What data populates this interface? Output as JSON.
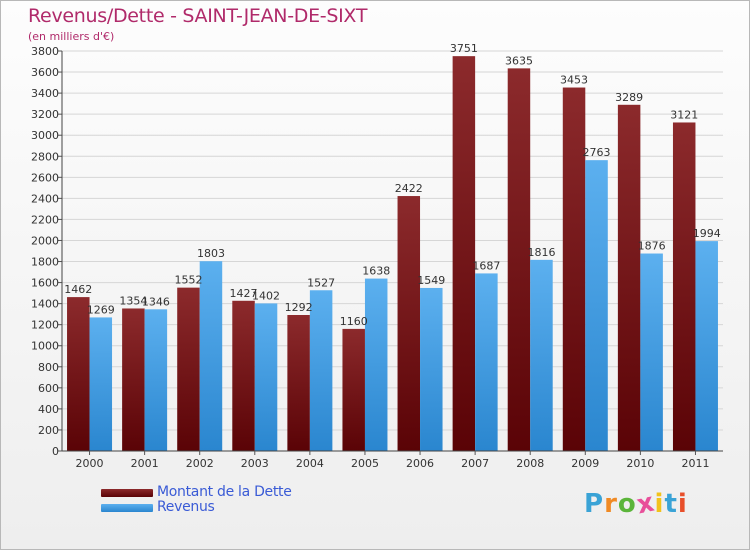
{
  "header": {
    "title": "Revenus/Dette - SAINT-JEAN-DE-SIXT",
    "subtitle": "(en milliers d'€)"
  },
  "chart_data": {
    "type": "bar",
    "title": "Revenus/Dette - SAINT-JEAN-DE-SIXT",
    "subtitle": "(en milliers d'€)",
    "categories": [
      "2000",
      "2001",
      "2002",
      "2003",
      "2004",
      "2005",
      "2006",
      "2007",
      "2008",
      "2009",
      "2010",
      "2011"
    ],
    "series": [
      {
        "name": "Montant de la Dette",
        "color": "#7a1a1c",
        "values": [
          1462,
          1354,
          1552,
          1427,
          1292,
          1160,
          2422,
          3751,
          3635,
          3453,
          3289,
          3121
        ],
        "labels": [
          "1462",
          "1354",
          "1552",
          "1427",
          "1292",
          "1160",
          "2422",
          "3751",
          "3635",
          "3453",
          "3289",
          "3121"
        ]
      },
      {
        "name": "Revenus",
        "color": "#3d9de6",
        "values": [
          1269,
          1346,
          1803,
          1402,
          1527,
          1638,
          1549,
          1687,
          1816,
          2763,
          1876,
          1994
        ],
        "labels": [
          "1269",
          "1346",
          "1803",
          "1402",
          "1527",
          "1638",
          "1549",
          "1687",
          "1816",
          "2763",
          "1876",
          "1994"
        ]
      }
    ],
    "ylim": [
      0,
      3800
    ],
    "ytick_step": 200,
    "grid": true,
    "legend_position": "bottom-left"
  },
  "legend": [
    {
      "label": "Montant de la Dette",
      "color": "#6e0f12"
    },
    {
      "label": "Revenus",
      "color": "#3d9de6"
    }
  ],
  "logo": {
    "text": "Proxiti",
    "letters": [
      "P",
      "r",
      "o",
      "x",
      "i",
      "t",
      "i"
    ],
    "colors": [
      "#3aa3d6",
      "#f08a24",
      "#5bb53a",
      "#e84f9a",
      "#f2c21b",
      "#3aa3d6",
      "#e84f2a"
    ]
  }
}
